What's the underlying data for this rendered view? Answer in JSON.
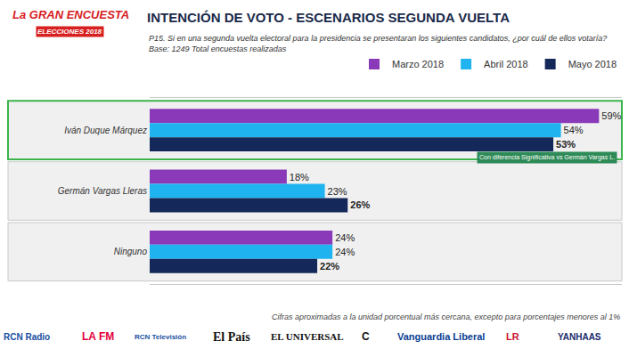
{
  "header": {
    "brand": "La GRAN ENCUESTA",
    "brand_sub": "ELECCIONES 2018"
  },
  "chart_data": {
    "type": "bar",
    "orientation": "horizontal",
    "title": "INTENCIÓN DE VOTO - ESCENARIOS SEGUNDA VUELTA",
    "subtitle": [
      "P15. Si en una segunda vuelta electoral para la presidencia se presentaran los siguientes candidatos, ¿por cuál de ellos votaría?",
      "Base: 1249 Total encuestas realizadas"
    ],
    "categories": [
      "Iván Duque Márquez",
      "Germán Vargas Lleras",
      "Ninguno"
    ],
    "series": [
      {
        "name": "Marzo 2018",
        "color": "#8a3ab9",
        "values": [
          59,
          18,
          24
        ],
        "value_labels": [
          "59%",
          "18%",
          "24%"
        ]
      },
      {
        "name": "Abril 2018",
        "color": "#1fb4f0",
        "values": [
          54,
          23,
          24
        ],
        "value_labels": [
          "54%",
          "23%",
          "24%"
        ]
      },
      {
        "name": "Mayo 2018",
        "color": "#14285a",
        "values": [
          53,
          26,
          22
        ],
        "value_labels": [
          "53%",
          "26%",
          "22%"
        ]
      }
    ],
    "xlim": [
      0,
      62
    ],
    "data_labels": true,
    "tick_labels": "y",
    "grid": false,
    "legend": "top right",
    "annotations": [
      {
        "text": "Con diferencia Significativa vs Germán Vargas L.",
        "category": "Iván Duque Márquez"
      }
    ]
  },
  "footer": {
    "note": "Cifras aproximadas a la unidad porcentual más cercana, excepto para porcentajes menores al 1%",
    "logos": [
      "RCN Radio",
      "LA FM",
      "RCN Televisión",
      "El País",
      "EL UNIVERSAL",
      "C",
      "Vanguardia Liberal",
      "LR",
      "YANHAAS"
    ]
  }
}
